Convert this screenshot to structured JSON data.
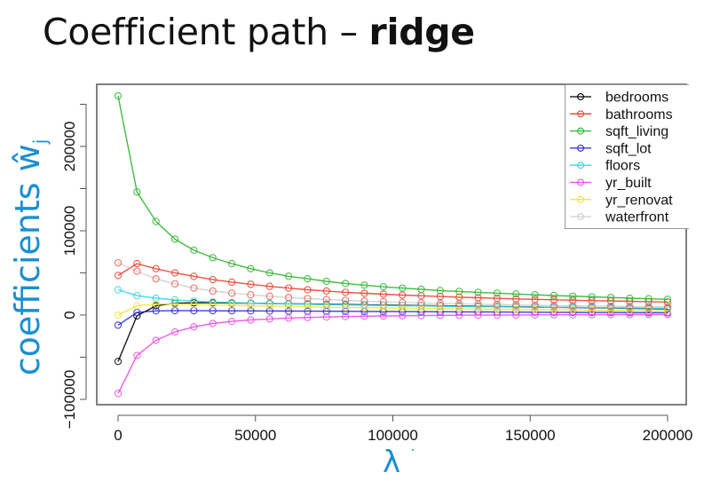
{
  "title": {
    "prefix": "Coefficient path – ",
    "bold": "ridge"
  },
  "chart_data": {
    "type": "line",
    "title": "Coefficient path – ridge",
    "xlabel": "λ",
    "ylabel": "coefficients ŵj",
    "xlim": [
      0,
      200000
    ],
    "ylim": [
      -100000,
      260000
    ],
    "x_ticks": [
      0,
      50000,
      100000,
      150000,
      200000
    ],
    "y_ticks": [
      -100000,
      -50000,
      0,
      50000,
      100000,
      150000,
      200000,
      250000
    ],
    "y_tick_labels": {
      "-100000": "-100000",
      "0": "0",
      "100000": "100000",
      "200000": "200000"
    },
    "grid": false,
    "legend_position": "top-right",
    "markers": "open-circle",
    "x": [
      0,
      6897,
      13793,
      20690,
      27586,
      34483,
      41379,
      48276,
      55172,
      62069,
      68966,
      75862,
      82759,
      89655,
      96552,
      103448,
      110345,
      117241,
      124138,
      131034,
      137931,
      144828,
      151724,
      158621,
      165517,
      172414,
      179310,
      186207,
      193103,
      200000
    ],
    "series": [
      {
        "name": "bedrooms",
        "color": "#000000",
        "marker_color": "#000000",
        "values": [
          -55000,
          -1000,
          11000,
          14000,
          14500,
          14500,
          14300,
          14000,
          13700,
          13400,
          13100,
          12800,
          12500,
          12200,
          11900,
          11600,
          11300,
          11000,
          10700,
          10400,
          10100,
          9800,
          9500,
          9200,
          8900,
          8600,
          8300,
          8000,
          7700,
          7400
        ]
      },
      {
        "name": "bathrooms",
        "color": "#e8402e",
        "marker_color": "#e8402e",
        "values": [
          47000,
          61000,
          55000,
          50000,
          46000,
          42000,
          39000,
          36500,
          34000,
          32000,
          30000,
          28500,
          27000,
          25800,
          24700,
          23700,
          22800,
          22000,
          21200,
          20500,
          19800,
          19200,
          18600,
          18100,
          17600,
          17100,
          16700,
          16300,
          15900,
          15500
        ]
      },
      {
        "name": "sqft_living",
        "color": "#2db52d",
        "marker_color": "#2db52d",
        "values": [
          260000,
          146000,
          111000,
          90000,
          77000,
          68000,
          61000,
          55000,
          50000,
          46000,
          43000,
          40000,
          37500,
          35500,
          33500,
          32000,
          30500,
          29000,
          28000,
          27000,
          26000,
          25000,
          24000,
          23200,
          22400,
          21600,
          20800,
          20000,
          19300,
          18600
        ]
      },
      {
        "name": "sqft_lot",
        "color": "#2828d8",
        "marker_color": "#2828d8",
        "values": [
          -12000,
          3000,
          5000,
          5200,
          5200,
          5100,
          5000,
          4900,
          4800,
          4700,
          4600,
          4500,
          4400,
          4300,
          4200,
          4100,
          4000,
          3900,
          3800,
          3700,
          3600,
          3500,
          3400,
          3300,
          3200,
          3100,
          3000,
          2900,
          2800,
          2700
        ]
      },
      {
        "name": "floors",
        "color": "#33d6e6",
        "marker_color": "#33d6e6",
        "values": [
          30000,
          23000,
          20000,
          18000,
          16500,
          15500,
          14800,
          14200,
          13700,
          13200,
          12800,
          12400,
          12000,
          11700,
          11400,
          11100,
          10800,
          10500,
          10200,
          10000,
          9800,
          9600,
          9400,
          9200,
          9000,
          8800,
          8600,
          8400,
          8200,
          8000
        ]
      },
      {
        "name": "yr_built",
        "color": "#e84ce8",
        "marker_color": "#e84ce8",
        "values": [
          -93000,
          -48000,
          -30000,
          -20000,
          -14000,
          -10000,
          -7500,
          -5800,
          -4600,
          -3600,
          -2900,
          -2300,
          -1800,
          -1400,
          -1100,
          -800,
          -600,
          -400,
          -250,
          -100,
          0,
          100,
          200,
          300,
          350,
          400,
          450,
          500,
          550,
          600
        ]
      },
      {
        "name": "yr_renovat",
        "color": "#f2e43a",
        "marker_color": "#f2e43a",
        "values": [
          0,
          11000,
          13000,
          13000,
          12500,
          12000,
          11500,
          11000,
          10600,
          10200,
          9800,
          9400,
          9000,
          8700,
          8400,
          8100,
          7800,
          7500,
          7200,
          7000,
          6800,
          6600,
          6400,
          6200,
          6000,
          5800,
          5600,
          5400,
          5200,
          5000
        ]
      },
      {
        "name": "waterfront",
        "color": "#cfcfcf",
        "marker_color": "#e8604e",
        "values": [
          62000,
          52000,
          43000,
          37000,
          32000,
          28500,
          26000,
          24000,
          22300,
          20800,
          19500,
          18400,
          17400,
          16500,
          15700,
          15000,
          14400,
          13800,
          13300,
          12800,
          12400,
          12000,
          11600,
          11300,
          11000,
          10700,
          10400,
          10100,
          9900,
          9700
        ]
      }
    ]
  },
  "axes": {
    "x_tick_labels": [
      "0",
      "50000",
      "100000",
      "150000",
      "200000"
    ],
    "y_tick_labels": [
      "-100000",
      "0",
      "100000",
      "200000"
    ],
    "xlabel": "λ",
    "ylabel_main": "coefficients ",
    "ylabel_symbol": "ŵ",
    "ylabel_sub": "j"
  },
  "legend": {
    "items": [
      "bedrooms",
      "bathrooms",
      "sqft_living",
      "sqft_lot",
      "floors",
      "yr_built",
      "yr_renovat",
      "waterfront"
    ]
  },
  "colors": {
    "accent_blue": "#1a8fd0",
    "axis": "#444444"
  }
}
